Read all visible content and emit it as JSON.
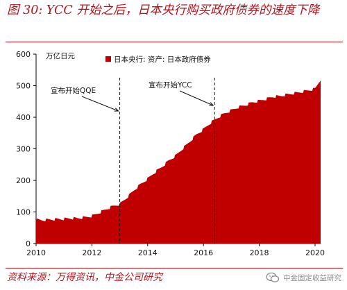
{
  "header": {
    "title": "图 30: YCC 开始之后，日本央行购买政府债券的速度下降"
  },
  "footer": {
    "source": "资料来源：万得资讯，中金公司研究",
    "watermark_text": "中金固定收益研究",
    "watermark_icon": "wechat-icon"
  },
  "colors": {
    "accent": "#b5121b",
    "series": "#c00000"
  },
  "chart_data": {
    "type": "area",
    "unit_label": "万亿日元",
    "legend": "日本央行: 资产: 日本政府债券",
    "legend_position": "top-right",
    "grid": false,
    "xlim": [
      2010,
      2020.2
    ],
    "ylim": [
      0,
      600
    ],
    "xticks": [
      2010,
      2012,
      2014,
      2016,
      2018,
      2020
    ],
    "yticks": [
      0,
      100,
      200,
      300,
      400,
      500,
      600
    ],
    "annotations": [
      {
        "text": "宣布开始QQE",
        "x": 2013.0
      },
      {
        "text": "宣布开始YCC",
        "x": 2016.4
      }
    ],
    "series": [
      {
        "name": "日本央行: 资产: 日本政府债券",
        "x": [
          2010.0,
          2010.25,
          2010.5,
          2010.75,
          2011.0,
          2011.25,
          2011.5,
          2011.75,
          2012.0,
          2012.25,
          2012.5,
          2012.75,
          2013.0,
          2013.25,
          2013.5,
          2013.75,
          2014.0,
          2014.25,
          2014.5,
          2014.75,
          2015.0,
          2015.25,
          2015.5,
          2015.75,
          2016.0,
          2016.25,
          2016.5,
          2016.75,
          2017.0,
          2017.25,
          2017.5,
          2017.75,
          2018.0,
          2018.25,
          2018.5,
          2018.75,
          2019.0,
          2019.25,
          2019.5,
          2019.75,
          2020.0,
          2020.1,
          2020.2
        ],
        "values": [
          75,
          74,
          76,
          77,
          78,
          80,
          80,
          83,
          87,
          97,
          108,
          118,
          125,
          145,
          168,
          188,
          205,
          225,
          242,
          262,
          278,
          300,
          322,
          345,
          362,
          382,
          398,
          412,
          422,
          432,
          438,
          447,
          452,
          458,
          465,
          467,
          472,
          476,
          480,
          485,
          490,
          505,
          520
        ]
      }
    ]
  }
}
